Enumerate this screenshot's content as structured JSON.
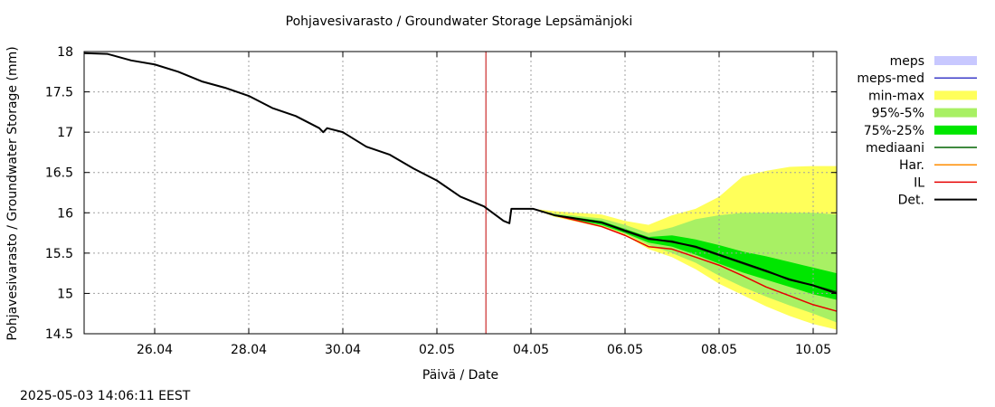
{
  "chart_data": {
    "type": "area",
    "title": "Pohjavesivarasto / Groundwater Storage   Lepsämänjoki",
    "xlabel": "Päivä / Date",
    "ylabel": "Pohjavesivarasto / Groundwater Storage (mm)",
    "xlim": [
      "2025-04-25",
      "2025-05-10"
    ],
    "ylim": [
      14.5,
      18
    ],
    "x_ticks": [
      "26.04",
      "28.04",
      "30.04",
      "02.05",
      "04.05",
      "06.05",
      "08.05",
      "10.05"
    ],
    "y_ticks": [
      "14.5",
      "15",
      "15.5",
      "16",
      "16.5",
      "17",
      "17.5",
      "18"
    ],
    "grid": true,
    "legend_position": "right",
    "forecast_start": "2025-05-03 13:00",
    "legend": [
      {
        "label": "meps",
        "kind": "band",
        "color": "#c8c8ff"
      },
      {
        "label": "meps-med",
        "kind": "line",
        "color": "#3c3cc8"
      },
      {
        "label": "min-max",
        "kind": "band",
        "color": "#ffff5a"
      },
      {
        "label": "95%-5%",
        "kind": "band",
        "color": "#a8f064"
      },
      {
        "label": "75%-25%",
        "kind": "band",
        "color": "#00e600"
      },
      {
        "label": "mediaani",
        "kind": "line",
        "color": "#006400"
      },
      {
        "label": "Har.",
        "kind": "line",
        "color": "#ff8c00"
      },
      {
        "label": "IL",
        "kind": "line",
        "color": "#e60000"
      },
      {
        "label": "Det.",
        "kind": "line",
        "color": "#000000"
      }
    ],
    "series": [
      {
        "name": "Det.",
        "color": "#000000",
        "points": [
          [
            "2025-04-25 00:00",
            17.98
          ],
          [
            "2025-04-25 12:00",
            17.97
          ],
          [
            "2025-04-26 00:00",
            17.89
          ],
          [
            "2025-04-26 12:00",
            17.84
          ],
          [
            "2025-04-27 00:00",
            17.75
          ],
          [
            "2025-04-27 12:00",
            17.63
          ],
          [
            "2025-04-28 00:00",
            17.55
          ],
          [
            "2025-04-28 12:00",
            17.45
          ],
          [
            "2025-04-29 00:00",
            17.3
          ],
          [
            "2025-04-29 12:00",
            17.2
          ],
          [
            "2025-04-30 00:00",
            17.05
          ],
          [
            "2025-04-30 02:00",
            17.0
          ],
          [
            "2025-04-30 04:00",
            17.05
          ],
          [
            "2025-04-30 12:00",
            17.0
          ],
          [
            "2025-05-01 00:00",
            16.82
          ],
          [
            "2025-05-01 12:00",
            16.72
          ],
          [
            "2025-05-02 00:00",
            16.55
          ],
          [
            "2025-05-02 12:00",
            16.4
          ],
          [
            "2025-05-03 00:00",
            16.2
          ],
          [
            "2025-05-03 12:00",
            16.08
          ],
          [
            "2025-05-03 22:00",
            15.9
          ],
          [
            "2025-05-04 01:00",
            15.87
          ],
          [
            "2025-05-04 02:00",
            16.05
          ],
          [
            "2025-05-04 13:00",
            16.05
          ],
          [
            "2025-05-05 00:00",
            15.97
          ],
          [
            "2025-05-06 00:00",
            15.88
          ],
          [
            "2025-05-06 12:00",
            15.78
          ],
          [
            "2025-05-07 00:00",
            15.68
          ],
          [
            "2025-05-07 12:00",
            15.64
          ],
          [
            "2025-05-08 00:00",
            15.58
          ],
          [
            "2025-05-08 12:00",
            15.48
          ],
          [
            "2025-05-09 00:00",
            15.38
          ],
          [
            "2025-05-09 12:00",
            15.28
          ],
          [
            "2025-05-10 00:00",
            15.17
          ],
          [
            "2025-05-10 12:00",
            15.1
          ],
          [
            "2025-05-11 00:00",
            15.0
          ]
        ]
      },
      {
        "name": "IL",
        "color": "#e60000",
        "points": [
          [
            "2025-05-04 13:00",
            16.05
          ],
          [
            "2025-05-05 00:00",
            15.97
          ],
          [
            "2025-05-06 00:00",
            15.83
          ],
          [
            "2025-05-06 12:00",
            15.72
          ],
          [
            "2025-05-07 00:00",
            15.58
          ],
          [
            "2025-05-07 12:00",
            15.55
          ],
          [
            "2025-05-08 00:00",
            15.45
          ],
          [
            "2025-05-08 12:00",
            15.35
          ],
          [
            "2025-05-09 00:00",
            15.22
          ],
          [
            "2025-05-09 12:00",
            15.08
          ],
          [
            "2025-05-10 00:00",
            14.97
          ],
          [
            "2025-05-10 12:00",
            14.86
          ],
          [
            "2025-05-11 00:00",
            14.78
          ]
        ]
      },
      {
        "name": "mediaani",
        "color": "#006400",
        "points": [
          [
            "2025-05-04 13:00",
            16.05
          ],
          [
            "2025-05-05 00:00",
            15.97
          ],
          [
            "2025-05-06 00:00",
            15.88
          ],
          [
            "2025-05-06 12:00",
            15.77
          ],
          [
            "2025-05-07 00:00",
            15.67
          ],
          [
            "2025-05-07 12:00",
            15.65
          ],
          [
            "2025-05-08 00:00",
            15.57
          ],
          [
            "2025-05-08 12:00",
            15.47
          ],
          [
            "2025-05-09 00:00",
            15.37
          ],
          [
            "2025-05-09 12:00",
            15.27
          ],
          [
            "2025-05-10 00:00",
            15.18
          ],
          [
            "2025-05-10 12:00",
            15.1
          ],
          [
            "2025-05-11 00:00",
            15.02
          ]
        ]
      }
    ],
    "bands": [
      {
        "name": "min-max",
        "color": "#ffff5a",
        "points": [
          [
            "2025-05-04 13:00",
            16.05,
            16.05
          ],
          [
            "2025-05-05 00:00",
            16.02,
            15.95
          ],
          [
            "2025-05-06 00:00",
            15.98,
            15.82
          ],
          [
            "2025-05-06 12:00",
            15.9,
            15.72
          ],
          [
            "2025-05-07 00:00",
            15.85,
            15.55
          ],
          [
            "2025-05-07 12:00",
            15.97,
            15.45
          ],
          [
            "2025-05-08 00:00",
            16.05,
            15.3
          ],
          [
            "2025-05-08 12:00",
            16.2,
            15.12
          ],
          [
            "2025-05-09 00:00",
            16.45,
            14.98
          ],
          [
            "2025-05-09 12:00",
            16.52,
            14.84
          ],
          [
            "2025-05-10 00:00",
            16.57,
            14.72
          ],
          [
            "2025-05-10 12:00",
            16.58,
            14.62
          ],
          [
            "2025-05-11 00:00",
            16.58,
            14.55
          ]
        ]
      },
      {
        "name": "95%-5%",
        "color": "#a8f064",
        "points": [
          [
            "2025-05-04 13:00",
            16.05,
            16.05
          ],
          [
            "2025-05-05 00:00",
            15.99,
            15.96
          ],
          [
            "2025-05-06 00:00",
            15.93,
            15.84
          ],
          [
            "2025-05-06 12:00",
            15.85,
            15.74
          ],
          [
            "2025-05-07 00:00",
            15.75,
            15.6
          ],
          [
            "2025-05-07 12:00",
            15.82,
            15.5
          ],
          [
            "2025-05-08 00:00",
            15.92,
            15.38
          ],
          [
            "2025-05-08 12:00",
            15.97,
            15.22
          ],
          [
            "2025-05-09 00:00",
            16.0,
            15.08
          ],
          [
            "2025-05-09 12:00",
            16.0,
            14.96
          ],
          [
            "2025-05-10 00:00",
            16.0,
            14.85
          ],
          [
            "2025-05-10 12:00",
            16.0,
            14.75
          ],
          [
            "2025-05-11 00:00",
            15.98,
            14.64
          ]
        ]
      },
      {
        "name": "75%-25%",
        "color": "#00e600",
        "points": [
          [
            "2025-05-04 13:00",
            16.05,
            16.05
          ],
          [
            "2025-05-05 00:00",
            15.98,
            15.96
          ],
          [
            "2025-05-06 00:00",
            15.9,
            15.85
          ],
          [
            "2025-05-06 12:00",
            15.8,
            15.75
          ],
          [
            "2025-05-07 00:00",
            15.7,
            15.63
          ],
          [
            "2025-05-07 12:00",
            15.72,
            15.58
          ],
          [
            "2025-05-08 00:00",
            15.67,
            15.48
          ],
          [
            "2025-05-08 12:00",
            15.6,
            15.37
          ],
          [
            "2025-05-09 00:00",
            15.52,
            15.26
          ],
          [
            "2025-05-09 12:00",
            15.46,
            15.17
          ],
          [
            "2025-05-10 00:00",
            15.39,
            15.08
          ],
          [
            "2025-05-10 12:00",
            15.32,
            14.99
          ],
          [
            "2025-05-11 00:00",
            15.25,
            14.92
          ]
        ]
      }
    ]
  },
  "timestamp": "2025-05-03 14:06:11 EEST"
}
